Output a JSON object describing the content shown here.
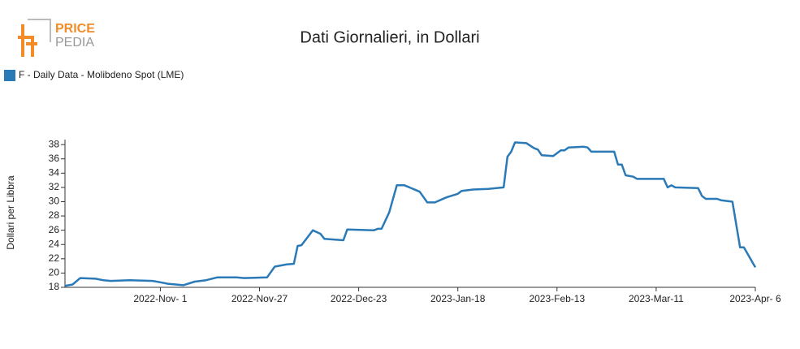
{
  "logo": {
    "top": "PRICE",
    "bottom": "PEDIA"
  },
  "chart_data": {
    "type": "line",
    "title": "Dati Giornalieri, in Dollari",
    "ylabel": "Dollari per Libbra",
    "xlim": [
      "2022-10-07",
      "2023-04-06"
    ],
    "ylim": [
      18,
      38.7
    ],
    "yticks": [
      18,
      20,
      22,
      24,
      26,
      28,
      30,
      32,
      34,
      36,
      38
    ],
    "xticks": [
      {
        "value": "2022-11-01",
        "label": "2022-Nov- 1"
      },
      {
        "value": "2022-11-27",
        "label": "2022-Nov-27"
      },
      {
        "value": "2022-12-23",
        "label": "2022-Dec-23"
      },
      {
        "value": "2023-01-18",
        "label": "2023-Jan-18"
      },
      {
        "value": "2023-02-13",
        "label": "2023-Feb-13"
      },
      {
        "value": "2023-03-11",
        "label": "2023-Mar-11"
      },
      {
        "value": "2023-04-06",
        "label": "2023-Apr- 6"
      }
    ],
    "legend": "top-left",
    "x": [
      "2022-10-07",
      "2022-10-09",
      "2022-10-11",
      "2022-10-15",
      "2022-10-17",
      "2022-10-19",
      "2022-10-24",
      "2022-10-30",
      "2022-11-01",
      "2022-11-03",
      "2022-11-07",
      "2022-11-10",
      "2022-11-13",
      "2022-11-16",
      "2022-11-21",
      "2022-11-23",
      "2022-11-29",
      "2022-12-01",
      "2022-12-04",
      "2022-12-06",
      "2022-12-07",
      "2022-12-08",
      "2022-12-11",
      "2022-12-13",
      "2022-12-14",
      "2022-12-19",
      "2022-12-20",
      "2022-12-27",
      "2022-12-28",
      "2022-12-29",
      "2022-12-31",
      "2023-01-02",
      "2023-01-04",
      "2023-01-08",
      "2023-01-10",
      "2023-01-12",
      "2023-01-15",
      "2023-01-18",
      "2023-01-19",
      "2023-01-22",
      "2023-01-26",
      "2023-01-30",
      "2023-01-31",
      "2023-02-01",
      "2023-02-02",
      "2023-02-05",
      "2023-02-07",
      "2023-02-08",
      "2023-02-09",
      "2023-02-12",
      "2023-02-14",
      "2023-02-15",
      "2023-02-16",
      "2023-02-20",
      "2023-02-21",
      "2023-02-22",
      "2023-02-28",
      "2023-03-01",
      "2023-03-02",
      "2023-03-03",
      "2023-03-05",
      "2023-03-06",
      "2023-03-13",
      "2023-03-14",
      "2023-03-15",
      "2023-03-16",
      "2023-03-22",
      "2023-03-23",
      "2023-03-24",
      "2023-03-27",
      "2023-03-28",
      "2023-03-31",
      "2023-04-02",
      "2023-04-03",
      "2023-04-06"
    ],
    "series": [
      {
        "name": "F - Daily Data - Molibdeno Spot (LME)",
        "color": "#2a7ab8",
        "values": [
          18.2,
          18.4,
          19.3,
          19.2,
          19.0,
          18.9,
          19.0,
          18.9,
          18.7,
          18.5,
          18.3,
          18.8,
          19.0,
          19.4,
          19.4,
          19.3,
          19.4,
          20.9,
          21.2,
          21.3,
          23.8,
          23.9,
          26.0,
          25.5,
          24.8,
          24.6,
          26.1,
          26.0,
          26.2,
          26.2,
          28.5,
          32.3,
          32.3,
          31.4,
          29.9,
          29.9,
          30.6,
          31.1,
          31.5,
          31.7,
          31.8,
          32.0,
          36.3,
          37.0,
          38.3,
          38.2,
          37.5,
          37.3,
          36.5,
          36.4,
          37.2,
          37.2,
          37.6,
          37.7,
          37.6,
          37.0,
          37.0,
          35.2,
          35.2,
          33.7,
          33.5,
          33.2,
          33.2,
          32.0,
          32.3,
          32.0,
          31.9,
          30.8,
          30.4,
          30.4,
          30.2,
          30.0,
          23.6,
          23.6,
          20.8
        ]
      }
    ]
  }
}
